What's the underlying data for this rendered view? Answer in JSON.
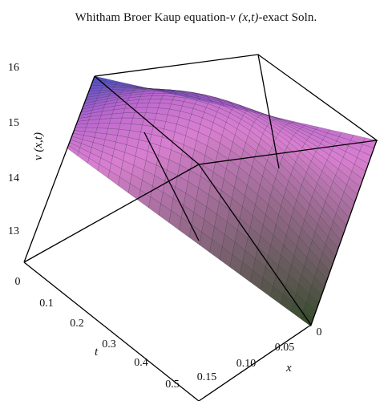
{
  "title": {
    "prefix": "Whitham Broer Kaup equation-",
    "math": "ν (x,t)",
    "suffix": "-exact Soln."
  },
  "chart_data": {
    "type": "surface",
    "title": "Whitham Broer Kaup equation-ν (x,t)-exact Soln.",
    "xlabel": "x",
    "ylabel": "t",
    "zlabel": "ν (x,t)",
    "x_ticks": [
      "0",
      "0.05",
      "0.10",
      "0.15"
    ],
    "t_ticks": [
      "0",
      "0.1",
      "0.2",
      "0.3",
      "0.4",
      "0.5"
    ],
    "z_ticks": [
      "13",
      "14",
      "15",
      "16"
    ],
    "x_range": [
      0,
      0.15
    ],
    "t_range": [
      0,
      0.5
    ],
    "z_range": [
      12.2,
      16.3
    ],
    "grid": false,
    "legend": "none",
    "colors": {
      "high": "#4d4fbf",
      "mid": "#b463ce",
      "pink": "#d97fd0",
      "low": "#324a26"
    },
    "samples": [
      {
        "x": 0,
        "t": 0,
        "v": 12.2
      },
      {
        "x": 0,
        "t": 0.5,
        "v": 13.95
      },
      {
        "x": 0.15,
        "t": 0,
        "v": 14.35
      },
      {
        "x": 0.15,
        "t": 0.5,
        "v": 16.1
      }
    ]
  }
}
